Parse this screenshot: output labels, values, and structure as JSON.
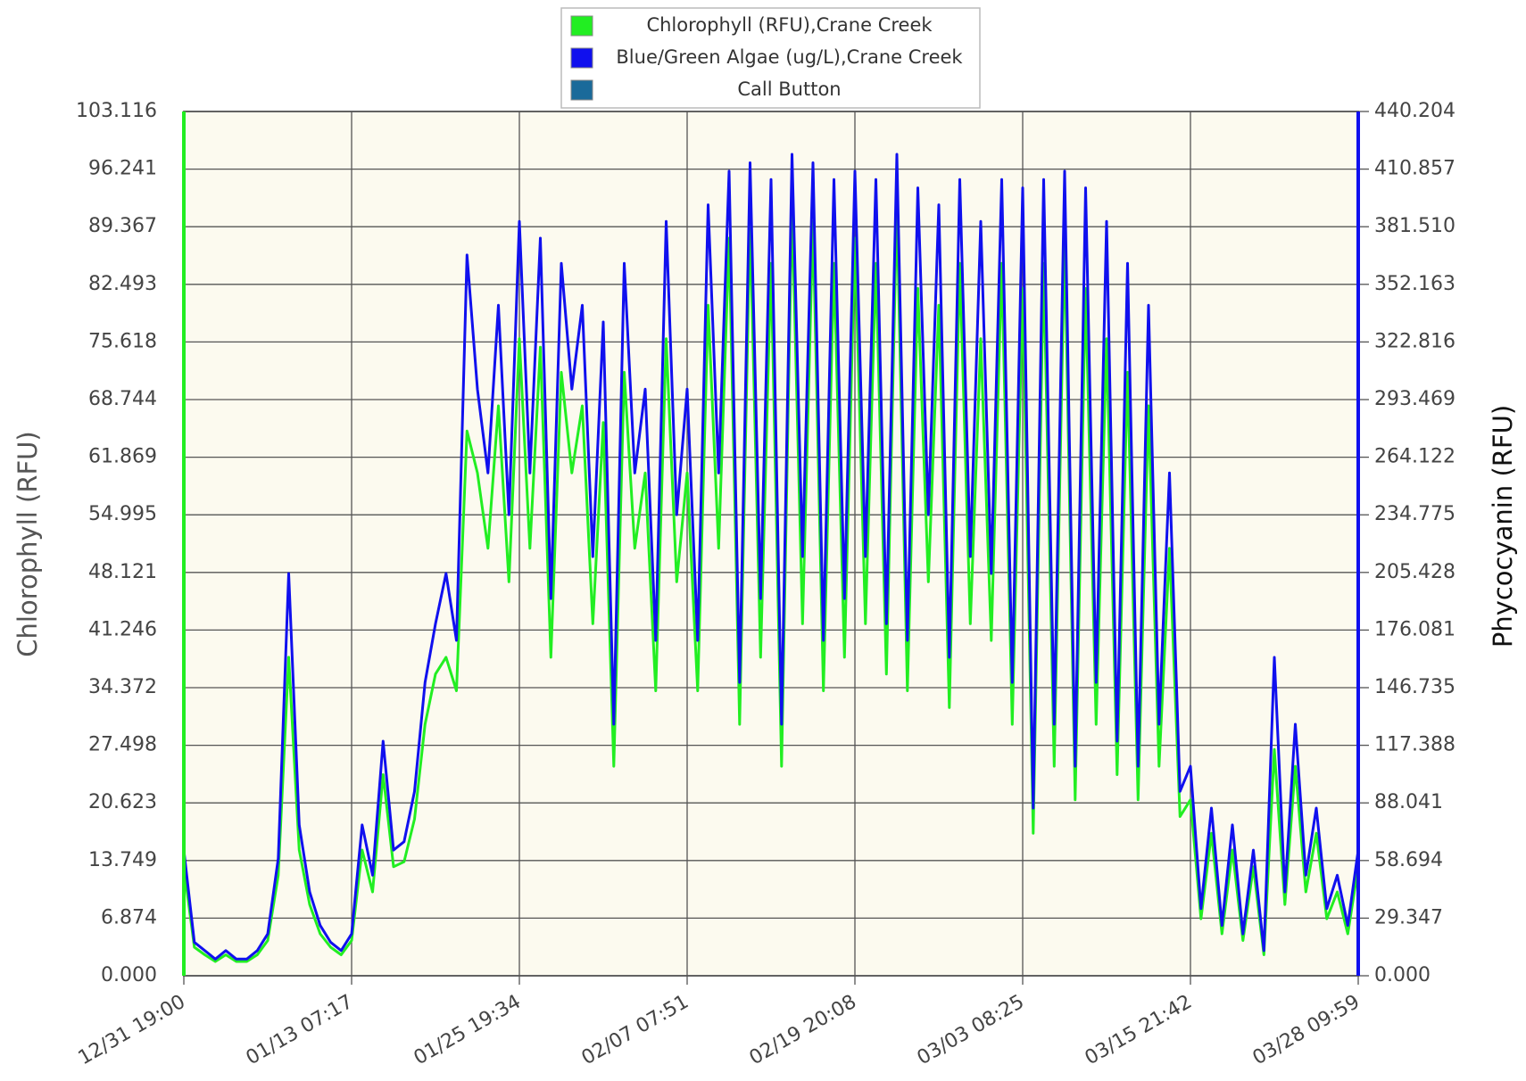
{
  "chart_data": {
    "type": "line",
    "y_label": "Chlorophyll (RFU)",
    "y2_label": "Phycocyanin (RFU)",
    "categories": [
      "12/31 19:00",
      null,
      null,
      null,
      null,
      null,
      null,
      null,
      null,
      null,
      null,
      null,
      null,
      null,
      null,
      null,
      "01/13 07:17",
      null,
      null,
      null,
      null,
      null,
      null,
      null,
      null,
      null,
      null,
      null,
      null,
      null,
      null,
      null,
      "01/25 19:34",
      null,
      null,
      null,
      null,
      null,
      null,
      null,
      null,
      null,
      null,
      null,
      null,
      null,
      null,
      null,
      "02/07 07:51",
      null,
      null,
      null,
      null,
      null,
      null,
      null,
      null,
      null,
      null,
      null,
      null,
      null,
      null,
      null,
      "02/19 20:08",
      null,
      null,
      null,
      null,
      null,
      null,
      null,
      null,
      null,
      null,
      null,
      null,
      null,
      null,
      null,
      "03/03 08:25",
      null,
      null,
      null,
      null,
      null,
      null,
      null,
      null,
      null,
      null,
      null,
      null,
      null,
      null,
      null,
      "03/15 21:42",
      null,
      null,
      null,
      null,
      null,
      null,
      null,
      null,
      null,
      null,
      null,
      null,
      null,
      null,
      null,
      "03/28 09:59"
    ],
    "series": [
      {
        "name": "Chlorophyll (RFU),Crane Creek",
        "color": "#22ee22",
        "axis": "y",
        "values": [
          13,
          3.4,
          2.5,
          1.7,
          2.5,
          1.7,
          1.7,
          2.5,
          4.2,
          12,
          38,
          15,
          8.5,
          5,
          3.4,
          2.5,
          4.2,
          15,
          10,
          24,
          13,
          13.6,
          18.7,
          30,
          36,
          38,
          34,
          65,
          60,
          51,
          68,
          47,
          76,
          51,
          75,
          38,
          72,
          60,
          68,
          42,
          66,
          25,
          72,
          51,
          60,
          34,
          76,
          47,
          60,
          34,
          80,
          51,
          88,
          30,
          90,
          38,
          85,
          25,
          92,
          42,
          90,
          34,
          85,
          38,
          88,
          42,
          85,
          36,
          92,
          34,
          82,
          47,
          80,
          32,
          85,
          42,
          76,
          40,
          85,
          30,
          82,
          17,
          85,
          25,
          88,
          21,
          82,
          30,
          76,
          24,
          72,
          21,
          68,
          25,
          51,
          19,
          21,
          6.8,
          17,
          5,
          15,
          4.2,
          13,
          2.5,
          27,
          8.5,
          25,
          10,
          17,
          6.8,
          10,
          5,
          13
        ]
      },
      {
        "name": "Blue/Green Algae (ug/L),Crane Creek",
        "color": "#1010ee",
        "axis": "y2",
        "values": [
          64.0,
          17.1,
          12.8,
          8.5,
          12.8,
          8.5,
          8.5,
          12.8,
          21.3,
          59.8,
          204.9,
          76.8,
          42.7,
          25.6,
          17.1,
          12.8,
          21.3,
          76.8,
          51.2,
          119.5,
          64.0,
          68.3,
          93.9,
          149.4,
          179.3,
          204.9,
          170.8,
          367.1,
          298.8,
          256.1,
          341.5,
          234.8,
          384.2,
          256.1,
          375.7,
          192.1,
          362.9,
          298.8,
          341.5,
          213.5,
          333.0,
          128.1,
          362.9,
          256.1,
          298.8,
          170.8,
          384.2,
          234.8,
          298.8,
          170.8,
          392.7,
          256.1,
          409.8,
          149.4,
          414.1,
          192.1,
          405.6,
          128.1,
          418.4,
          213.5,
          414.1,
          170.8,
          405.6,
          192.1,
          409.8,
          213.5,
          405.6,
          179.3,
          418.4,
          170.8,
          401.3,
          234.8,
          392.7,
          162.2,
          405.6,
          213.5,
          384.2,
          204.9,
          405.6,
          149.4,
          401.3,
          85.4,
          405.6,
          128.1,
          409.8,
          106.7,
          401.3,
          149.4,
          384.2,
          119.5,
          362.9,
          106.7,
          341.5,
          128.1,
          256.1,
          93.9,
          106.7,
          34.2,
          85.4,
          25.6,
          76.8,
          21.3,
          64.0,
          12.8,
          162.2,
          42.7,
          128.1,
          51.2,
          85.4,
          34.2,
          51.2,
          25.6,
          64.0
        ]
      }
    ],
    "extra_legend_entries": [
      {
        "name": "Call Button",
        "color": "#1a6a9a"
      }
    ],
    "ylim": [
      0,
      103.116
    ],
    "yticks": [
      {
        "value": 0,
        "label": "0.000"
      },
      6.874,
      13.749,
      20.623,
      27.498,
      34.372,
      41.246,
      48.121,
      54.995,
      61.869,
      68.744,
      75.618,
      82.493,
      89.367,
      96.241,
      103.116
    ],
    "y2lim": [
      0,
      440.204
    ],
    "y2ticks": [
      {
        "value": 0,
        "label": "0.000"
      },
      29.347,
      58.694,
      88.041,
      117.388,
      146.735,
      176.081,
      205.428,
      234.775,
      264.122,
      293.469,
      322.816,
      352.163,
      {
        "value": 381.51,
        "label": "381.510"
      },
      410.857,
      440.204
    ],
    "grid": true,
    "legend_position": "top"
  }
}
